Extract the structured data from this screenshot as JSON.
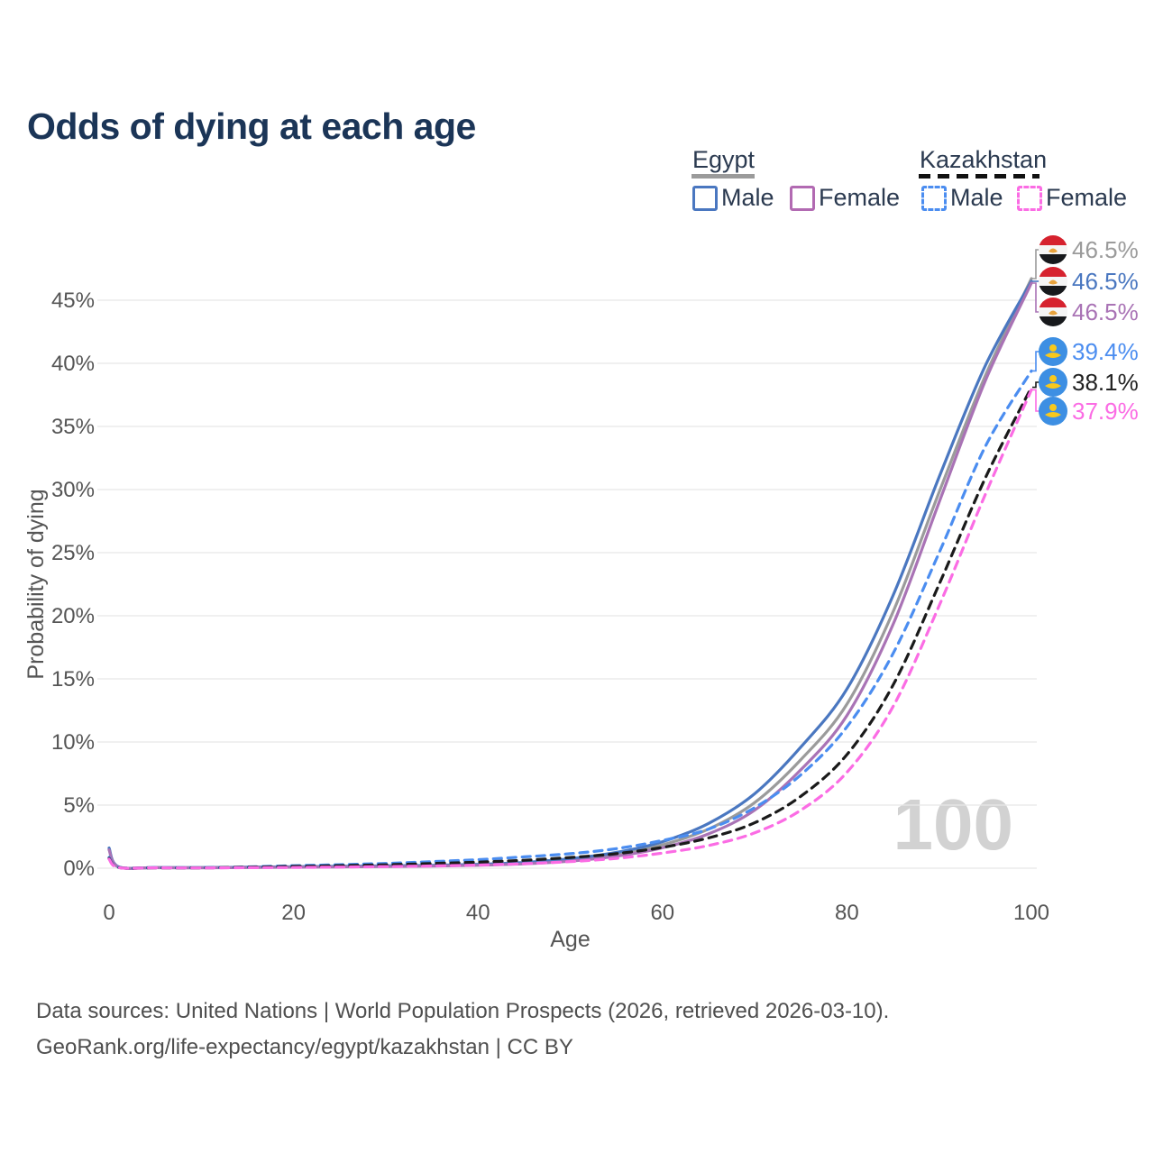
{
  "title": "Odds of dying at each age",
  "watermark": "100",
  "legend": {
    "egypt": {
      "label": "Egypt",
      "male": "Male",
      "female": "Female"
    },
    "kazakhstan": {
      "label": "Kazakhstan",
      "male": "Male",
      "female": "Female"
    }
  },
  "legend_colors": {
    "egypt_male": "#4a77c0",
    "egypt_female": "#b26ab2",
    "kazakhstan_male": "#4b8df0",
    "kazakhstan_female": "#fb6ce4"
  },
  "footer": {
    "line1": "Data sources: United Nations | World Population Prospects (2026, retrieved 2026-03-10).",
    "line2": "GeoRank.org/life-expectancy/egypt/kazakhstan | CC BY"
  },
  "chart_data": {
    "type": "line",
    "title": "Odds of dying at each age",
    "xlabel": "Age",
    "ylabel": "Probability of dying",
    "xlim": [
      0,
      100
    ],
    "ylim": [
      0,
      48
    ],
    "x_ticks": [
      0,
      20,
      40,
      60,
      80,
      100
    ],
    "y_ticks": [
      0,
      5,
      10,
      15,
      20,
      25,
      30,
      35,
      40,
      45
    ],
    "y_tick_suffix": "%",
    "grid": true,
    "legend_position": "top-right",
    "hovered_age": "100",
    "ages": [
      0,
      1,
      5,
      10,
      15,
      20,
      25,
      30,
      35,
      40,
      45,
      50,
      55,
      60,
      65,
      70,
      75,
      80,
      85,
      90,
      95,
      100
    ],
    "series": [
      {
        "name": "Egypt Total",
        "country": "egypt",
        "sex": "total",
        "color": "#9b9b9b",
        "dash": false,
        "end_label": "46.5%",
        "end_value": 46.5,
        "values": [
          1.5,
          0.11,
          0.04,
          0.04,
          0.07,
          0.1,
          0.13,
          0.16,
          0.2,
          0.27,
          0.4,
          0.65,
          1.1,
          1.85,
          3.1,
          5.2,
          8.6,
          13.0,
          20.3,
          29.8,
          39.0,
          46.5
        ]
      },
      {
        "name": "Egypt Male",
        "country": "egypt",
        "sex": "male",
        "color": "#4a77c0",
        "dash": false,
        "end_label": "46.5%",
        "end_value": 46.5,
        "values": [
          1.6,
          0.12,
          0.05,
          0.05,
          0.08,
          0.12,
          0.15,
          0.19,
          0.23,
          0.31,
          0.46,
          0.75,
          1.25,
          2.1,
          3.55,
          5.9,
          9.6,
          14.2,
          21.6,
          31.0,
          39.8,
          46.5
        ]
      },
      {
        "name": "Egypt Female",
        "country": "egypt",
        "sex": "female",
        "color": "#a973b5",
        "dash": false,
        "end_label": "46.5%",
        "end_value": 46.5,
        "values": [
          1.45,
          0.1,
          0.04,
          0.03,
          0.05,
          0.08,
          0.1,
          0.13,
          0.17,
          0.23,
          0.34,
          0.56,
          0.95,
          1.62,
          2.72,
          4.6,
          7.8,
          12.1,
          19.3,
          29.0,
          38.6,
          46.5
        ]
      },
      {
        "name": "Kazakhstan Male",
        "country": "kazakhstan",
        "sex": "male",
        "color": "#4b8df0",
        "dash": true,
        "end_label": "39.4%",
        "end_value": 39.4,
        "values": [
          0.85,
          0.07,
          0.04,
          0.04,
          0.1,
          0.2,
          0.28,
          0.38,
          0.52,
          0.68,
          0.9,
          1.15,
          1.55,
          2.2,
          3.1,
          4.8,
          7.4,
          11.2,
          17.0,
          25.0,
          33.4,
          39.4
        ]
      },
      {
        "name": "Kazakhstan Total",
        "country": "kazakhstan",
        "sex": "total",
        "color": "#1a1a1a",
        "dash": true,
        "end_label": "38.1%",
        "end_value": 38.1,
        "values": [
          0.78,
          0.06,
          0.03,
          0.03,
          0.08,
          0.14,
          0.2,
          0.27,
          0.37,
          0.48,
          0.63,
          0.85,
          1.15,
          1.65,
          2.4,
          3.6,
          5.7,
          9.0,
          14.5,
          22.5,
          30.9,
          38.1
        ]
      },
      {
        "name": "Kazakhstan Female",
        "country": "kazakhstan",
        "sex": "female",
        "color": "#fb6ce4",
        "dash": true,
        "end_label": "37.9%",
        "end_value": 37.9,
        "values": [
          0.72,
          0.05,
          0.03,
          0.02,
          0.04,
          0.06,
          0.09,
          0.13,
          0.18,
          0.25,
          0.36,
          0.52,
          0.78,
          1.2,
          1.8,
          2.8,
          4.6,
          7.6,
          12.8,
          20.8,
          29.6,
          37.9
        ]
      }
    ]
  }
}
